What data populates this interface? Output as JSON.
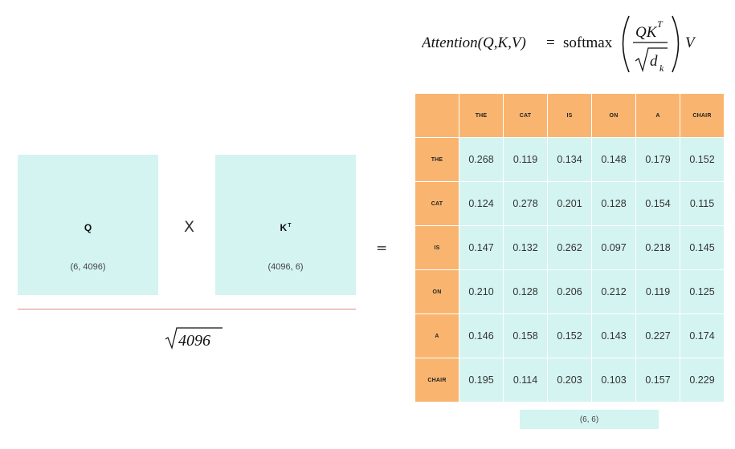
{
  "formula": {
    "lhs": "Attention(Q,K,V)",
    "equals": "=",
    "func": "softmax",
    "numerator": "QK",
    "numerator_sup": "T",
    "denominator_base": "d",
    "denominator_sub": "k",
    "tail": "V"
  },
  "query_matrix": {
    "label": "Q",
    "shape": "(6, 4096)"
  },
  "operator_times": "X",
  "key_matrix": {
    "label": "K",
    "label_sup": "T",
    "shape": "(4096, 6)"
  },
  "scale": {
    "sqrt_value": "4096"
  },
  "operator_equals": "=",
  "attention_table": {
    "tokens": [
      "THE",
      "CAT",
      "IS",
      "ON",
      "A",
      "CHAIR"
    ],
    "rows": [
      [
        "0.268",
        "0.119",
        "0.134",
        "0.148",
        "0.179",
        "0.152"
      ],
      [
        "0.124",
        "0.278",
        "0.201",
        "0.128",
        "0.154",
        "0.115"
      ],
      [
        "0.147",
        "0.132",
        "0.262",
        "0.097",
        "0.218",
        "0.145"
      ],
      [
        "0.210",
        "0.128",
        "0.206",
        "0.212",
        "0.119",
        "0.125"
      ],
      [
        "0.146",
        "0.158",
        "0.152",
        "0.143",
        "0.227",
        "0.174"
      ],
      [
        "0.195",
        "0.114",
        "0.203",
        "0.103",
        "0.157",
        "0.229"
      ]
    ],
    "shape": "(6, 6)"
  },
  "colors": {
    "matrix_fill": "#d4f4f1",
    "header_fill": "#f9b56f",
    "divider": "#e08a84"
  }
}
